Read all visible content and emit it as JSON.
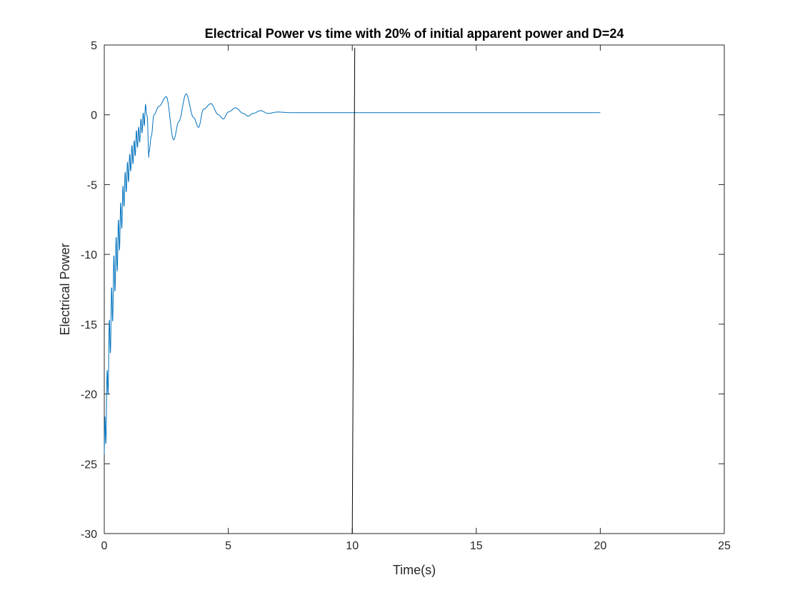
{
  "chart_data": {
    "type": "line",
    "title": "Electrical Power vs time with 20% of initial apparent power and D=24",
    "xlabel": "Time(s)",
    "ylabel": "Electrical Power",
    "xlim": [
      0,
      25
    ],
    "ylim": [
      -30,
      5
    ],
    "xticks": [
      0,
      5,
      10,
      15,
      20,
      25
    ],
    "yticks": [
      -30,
      -25,
      -20,
      -15,
      -10,
      -5,
      0,
      5
    ],
    "xtick_labels": [
      "0",
      "5",
      "10",
      "15",
      "20",
      "25"
    ],
    "ytick_labels": [
      "-30",
      "-25",
      "-20",
      "-15",
      "-10",
      "-5",
      "0",
      "5"
    ],
    "grid": false,
    "box": true,
    "series": [
      {
        "color": "#0072BD",
        "style": "oscillating response",
        "description_points": {
          "x": [
            0.0,
            0.1,
            0.2,
            0.3,
            0.4,
            0.5,
            0.6,
            0.7,
            0.8,
            0.9,
            1.0,
            1.1,
            1.2,
            1.3,
            1.4,
            1.5,
            1.6,
            1.7,
            1.8,
            1.9,
            2.0,
            2.2,
            2.5,
            2.8,
            3.0,
            3.3,
            3.6,
            3.8,
            4.0,
            4.3,
            4.6,
            4.8,
            5.0,
            5.3,
            5.6,
            5.8,
            6.0,
            6.3,
            6.6,
            7.0,
            7.5,
            8.0,
            9.0,
            10.0,
            15.0,
            20.0
          ],
          "y": [
            -24.3,
            -20.5,
            -16.5,
            -14.0,
            -11.5,
            -10.0,
            -8.5,
            -7.0,
            -5.5,
            -4.5,
            -3.8,
            -3.0,
            -2.6,
            -1.8,
            -1.5,
            -0.8,
            -0.3,
            0.5,
            -2.7,
            -1.5,
            0.0,
            0.6,
            1.3,
            -1.8,
            -0.5,
            1.5,
            -0.2,
            -0.9,
            0.4,
            0.8,
            0.0,
            -0.3,
            0.2,
            0.5,
            0.1,
            -0.1,
            0.1,
            0.3,
            0.1,
            0.2,
            0.15,
            0.15,
            0.15,
            0.15,
            0.15,
            0.15
          ]
        }
      },
      {
        "color": "#000000",
        "style": "vertical line",
        "x": [
          10.0,
          10.1
        ],
        "y": [
          -30,
          4.8
        ]
      }
    ]
  }
}
